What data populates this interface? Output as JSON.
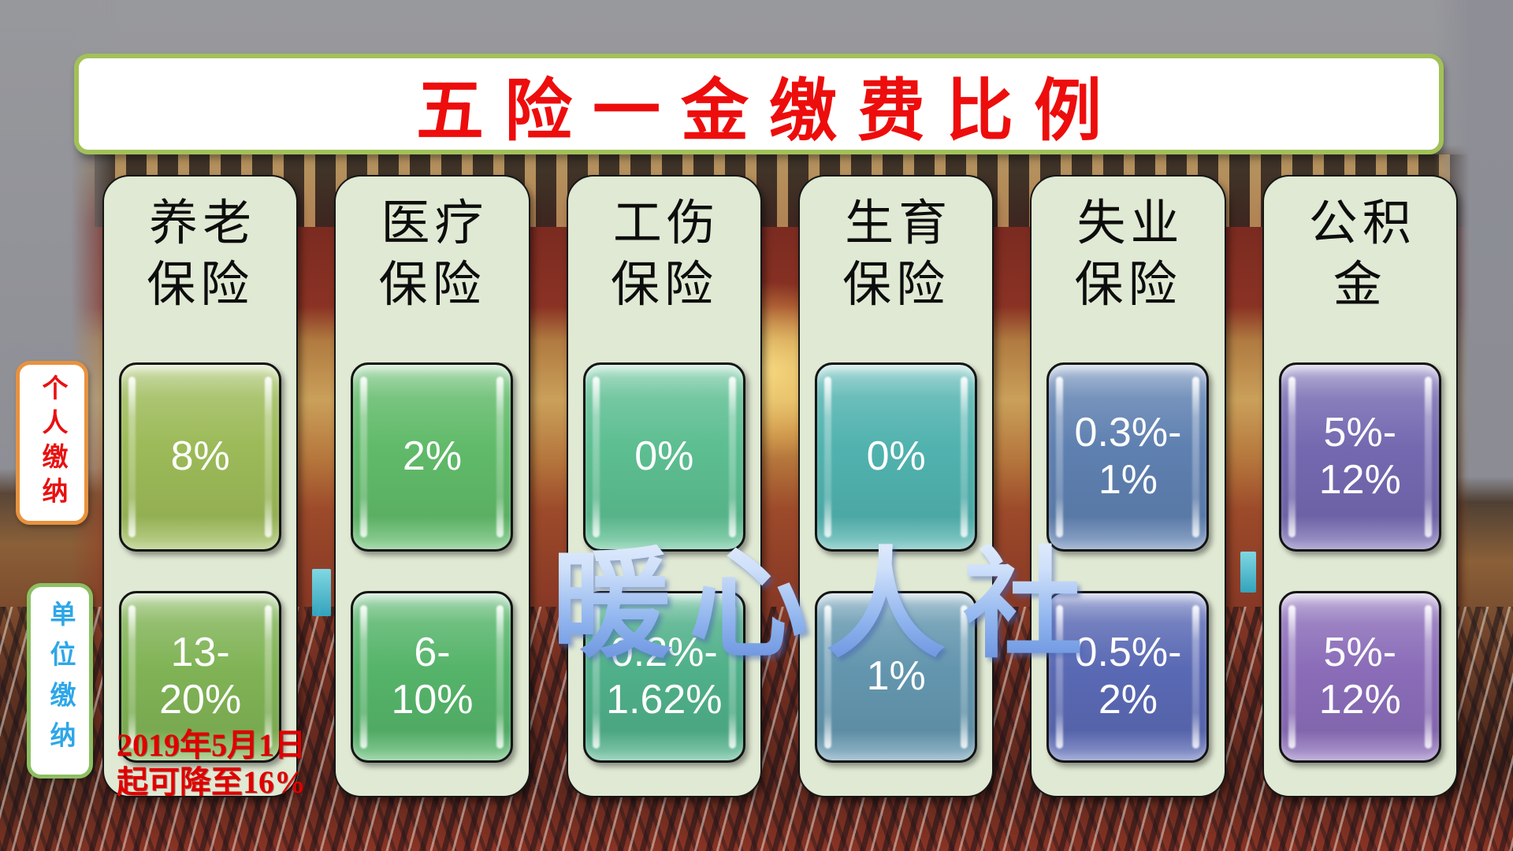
{
  "title": "五险一金缴费比例",
  "watermark": "暖心人社",
  "row_labels": {
    "personal": "个人缴纳",
    "employer": "单位缴纳"
  },
  "footnote": "2019年5月1日\n起可降至16%",
  "columns": [
    {
      "header": "养老\n保险",
      "personal": {
        "value": "8%",
        "color": "#9cba58"
      },
      "employer": {
        "value": "13-\n20%",
        "color": "#80b355"
      }
    },
    {
      "header": "医疗\n保险",
      "personal": {
        "value": "2%",
        "color": "#60ba69"
      },
      "employer": {
        "value": "6-\n10%",
        "color": "#55b469"
      }
    },
    {
      "header": "工伤\n保险",
      "personal": {
        "value": "0%",
        "color": "#5cbe91"
      },
      "employer": {
        "value": "0.2%-\n1.62%",
        "color": "#4fb089"
      }
    },
    {
      "header": "生育\n保险",
      "personal": {
        "value": "0%",
        "color": "#50b2ae"
      },
      "employer": {
        "value": "1%",
        "color": "#6396ae"
      }
    },
    {
      "header": "失业\n保险",
      "personal": {
        "value": "0.3%-\n1%",
        "color": "#5e80b0"
      },
      "employer": {
        "value": "0.5%-\n2%",
        "color": "#5a69b4"
      }
    },
    {
      "header": "公积\n金",
      "personal": {
        "value": "5%-\n12%",
        "color": "#7468b0"
      },
      "employer": {
        "value": "5%-\n12%",
        "color": "#8a6cb8"
      }
    }
  ],
  "colors": {
    "title_text": "#ed0d0d",
    "title_border": "#a2c159",
    "column_bg": "#e0e9d3",
    "personal_label_text": "#e81111",
    "personal_label_border": "#e8923f",
    "employer_label_text": "#2ea7e8",
    "employer_label_border": "#8cc063",
    "footnote_text": "#e00000",
    "watermark_blue": "#7fb0ef"
  }
}
